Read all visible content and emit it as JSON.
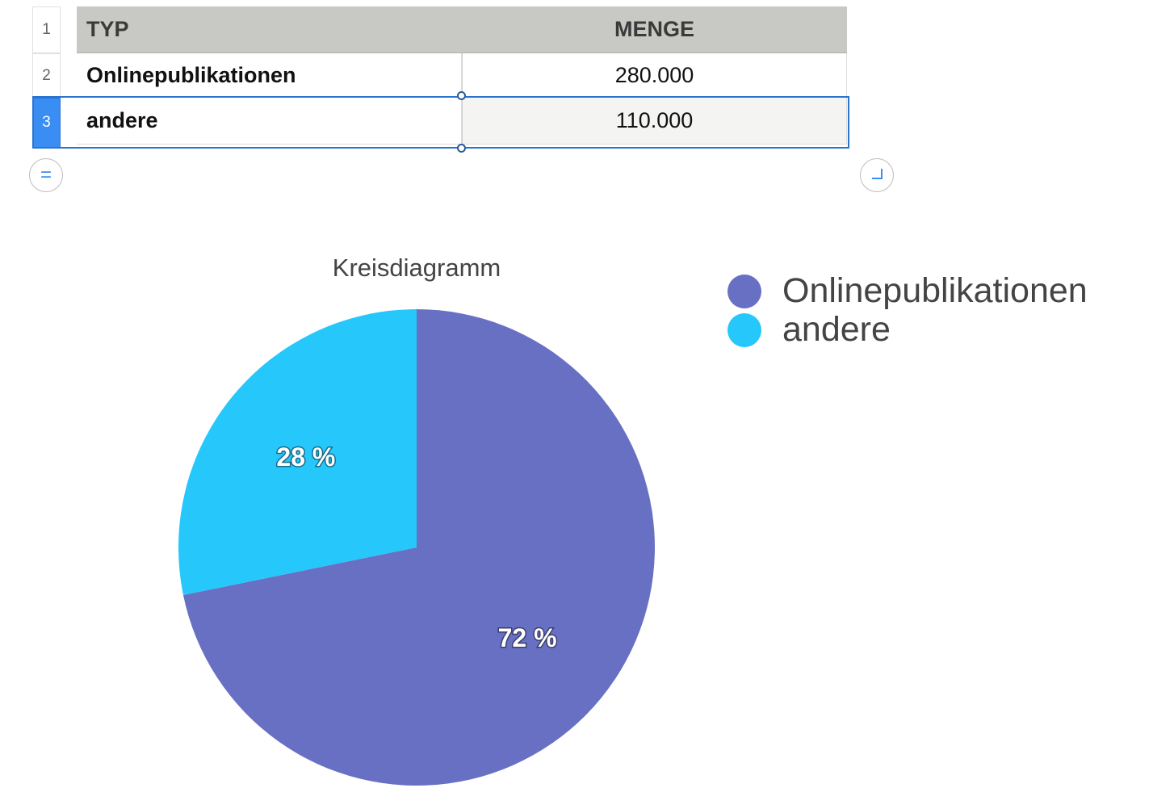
{
  "table": {
    "row_numbers": [
      "1",
      "2",
      "3"
    ],
    "header": {
      "typ": "TYP",
      "menge": "MENGE"
    },
    "rows": [
      {
        "typ": "Onlinepublikationen",
        "menge": "280.000"
      },
      {
        "typ": "andere",
        "menge": "110.000"
      }
    ],
    "selected_row": 3
  },
  "controls": {
    "equals_icon": "=",
    "resize_icon": "resize-corner"
  },
  "chart_data": {
    "type": "pie",
    "title": "Kreisdiagramm",
    "categories": [
      "Onlinepublikationen",
      "andere"
    ],
    "values": [
      280000,
      110000
    ],
    "labels": [
      "72 %",
      "28 %"
    ],
    "colors": [
      "#6870c4",
      "#26c7fb"
    ],
    "legend": "right"
  }
}
